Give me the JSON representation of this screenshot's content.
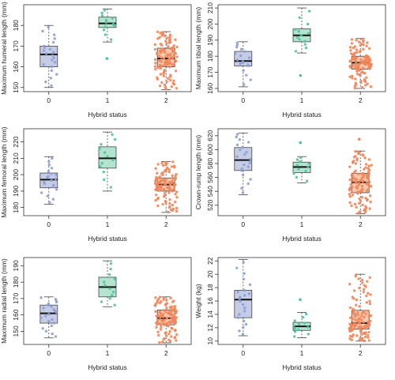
{
  "colors": {
    "g0": "#8e9fd1",
    "g1": "#53c29a",
    "g2": "#f2865a",
    "box0": "#c5cde6",
    "box1": "#b2e4cf",
    "box2": "#f8c9b0",
    "frame": "#333333"
  },
  "chart_data": [
    {
      "type": "box",
      "ylabel": "Maximum humeral length (mm)",
      "xlabel": "Hybrid status",
      "categories": [
        "0",
        "1",
        "2"
      ],
      "ylim": [
        148,
        190
      ],
      "yticks": [
        150,
        160,
        170,
        180
      ],
      "groups": [
        {
          "category": "0",
          "min": 150,
          "q1": 160,
          "median": 166,
          "q3": 170,
          "max": 180,
          "n": 22
        },
        {
          "category": "1",
          "min": 172,
          "q1": 179,
          "median": 181,
          "q3": 184,
          "max": 188,
          "n": 12,
          "outliers": [
            164
          ]
        },
        {
          "category": "2",
          "min": 149,
          "q1": 160,
          "median": 164,
          "q3": 169,
          "max": 177,
          "n": 110
        }
      ]
    },
    {
      "type": "box",
      "ylabel": "Maximum tibial length (mm)",
      "xlabel": "Hybrid status",
      "categories": [
        "0",
        "1",
        "2"
      ],
      "ylim": [
        158,
        212
      ],
      "yticks": [
        160,
        170,
        180,
        190,
        200,
        210
      ],
      "groups": [
        {
          "category": "0",
          "min": 161,
          "q1": 174,
          "median": 177,
          "q3": 183,
          "max": 189,
          "n": 18
        },
        {
          "category": "1",
          "min": 182,
          "q1": 189,
          "median": 193,
          "q3": 197,
          "max": 210,
          "n": 13,
          "outliers": [
            168
          ]
        },
        {
          "category": "2",
          "min": 160,
          "q1": 172,
          "median": 176,
          "q3": 180,
          "max": 191,
          "n": 110
        }
      ]
    },
    {
      "type": "box",
      "ylabel": "Maximum femoral length (mm)",
      "xlabel": "Hybrid status",
      "categories": [
        "0",
        "1",
        "2"
      ],
      "ylim": [
        175,
        228
      ],
      "yticks": [
        180,
        190,
        200,
        210,
        220
      ],
      "groups": [
        {
          "category": "0",
          "min": 182,
          "q1": 192,
          "median": 197,
          "q3": 201,
          "max": 211,
          "n": 20
        },
        {
          "category": "1",
          "min": 190,
          "q1": 204,
          "median": 210,
          "q3": 217,
          "max": 226,
          "n": 12
        },
        {
          "category": "2",
          "min": 177,
          "q1": 190,
          "median": 194,
          "q3": 198,
          "max": 208,
          "n": 110
        }
      ]
    },
    {
      "type": "box",
      "ylabel": "Crown-rump length (mm)",
      "xlabel": "Hybrid status",
      "categories": [
        "0",
        "1",
        "2"
      ],
      "ylim": [
        505,
        630
      ],
      "yticks": [
        520,
        540,
        560,
        580,
        600,
        620
      ],
      "groups": [
        {
          "category": "0",
          "min": 535,
          "q1": 570,
          "median": 585,
          "q3": 603,
          "max": 624,
          "n": 22
        },
        {
          "category": "1",
          "min": 552,
          "q1": 567,
          "median": 575,
          "q3": 582,
          "max": 590,
          "n": 11,
          "outliers": [
            610
          ]
        },
        {
          "category": "2",
          "min": 508,
          "q1": 538,
          "median": 553,
          "q3": 566,
          "max": 598,
          "n": 110,
          "outliers": [
            615
          ]
        }
      ]
    },
    {
      "type": "box",
      "ylabel": "Maximum radial length (mm)",
      "xlabel": "Hybrid status",
      "categories": [
        "0",
        "1",
        "2"
      ],
      "ylim": [
        142,
        195
      ],
      "yticks": [
        150,
        160,
        170,
        180,
        190
      ],
      "groups": [
        {
          "category": "0",
          "min": 146,
          "q1": 155,
          "median": 161,
          "q3": 166,
          "max": 171,
          "n": 22
        },
        {
          "category": "1",
          "min": 165,
          "q1": 171,
          "median": 177,
          "q3": 183,
          "max": 193,
          "n": 12
        },
        {
          "category": "2",
          "min": 143,
          "q1": 154,
          "median": 158,
          "q3": 163,
          "max": 171,
          "n": 110
        }
      ]
    },
    {
      "type": "box",
      "ylabel": "Weight (kg)",
      "xlabel": "Hybrid status",
      "categories": [
        "0",
        "1",
        "2"
      ],
      "ylim": [
        9.5,
        22.5
      ],
      "yticks": [
        10,
        12,
        14,
        16,
        18,
        20,
        22
      ],
      "groups": [
        {
          "category": "0",
          "min": 10.8,
          "q1": 13.5,
          "median": 16.2,
          "q3": 17.6,
          "max": 22.2,
          "n": 22
        },
        {
          "category": "1",
          "min": 10.5,
          "q1": 11.6,
          "median": 12.2,
          "q3": 12.8,
          "max": 14.3,
          "n": 12,
          "outliers": [
            16.2
          ]
        },
        {
          "category": "2",
          "min": 10.0,
          "q1": 11.8,
          "median": 12.7,
          "q3": 14.6,
          "max": 20.0,
          "n": 110
        }
      ]
    }
  ]
}
